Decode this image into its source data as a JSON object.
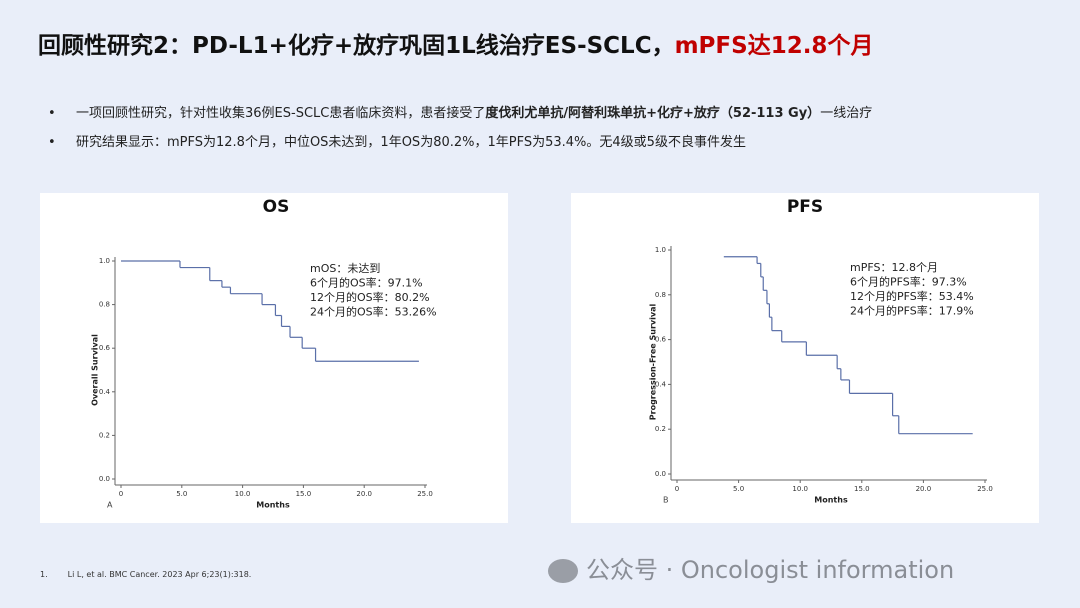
{
  "slide": {
    "title": "回顾性研究2：PD-L1+化疗+放疗巩固1L线治疗ES-SCLC，",
    "title_highlight": "mPFS达12.8个月",
    "bullets": [
      [
        "一项回顾性研究，针对性收集36例ES-SCLC患者临床资料，患者接受了",
        "度伐利尤单抗/阿替利珠单抗+化疗+放疗（52-113 Gy）",
        "一线治疗"
      ],
      [
        "研究结果显示：mPFS为12.8个月，中位OS未达到，1年OS为80.2%，1年PFS为53.4%。无4级或5级不良事件发生"
      ]
    ],
    "footnote_number": "1.",
    "footnote": "Li L, et al. BMC Cancer. 2023 Apr 6;23(1):318.",
    "watermark": "公众号 · Oncologist information"
  },
  "chart_data": [
    {
      "type": "step",
      "title": "OS",
      "panel_label": "A",
      "x_label": "Months",
      "y_label": "Overall Survival",
      "annotations": [
        "mOS：未达到",
        "6个月的OS率：97.1%",
        "12个月的OS率：80.2%",
        "24个月的OS率：53.26%"
      ],
      "x": [
        0,
        4.85,
        7.3,
        8.3,
        9.0,
        11.6,
        12.7,
        13.2,
        13.9,
        14.9,
        16.0
      ],
      "y": [
        1.0,
        0.97,
        0.91,
        0.88,
        0.85,
        0.8,
        0.75,
        0.7,
        0.65,
        0.6,
        0.54
      ],
      "x_end": 24.5,
      "color": "#5a6fa8",
      "xlim": [
        0,
        25
      ],
      "ylim": [
        0,
        1
      ],
      "xticks": [
        0,
        {
          "value": 5,
          "label": "5.0"
        },
        {
          "value": 10,
          "label": "10.0"
        },
        {
          "value": 15,
          "label": "15.0"
        },
        {
          "value": 20,
          "label": "20.0"
        },
        {
          "value": 25,
          "label": "25.0"
        }
      ],
      "yticks": [
        {
          "value": 0,
          "label": "0.0"
        },
        0.2,
        0.4,
        0.6,
        0.8,
        {
          "value": 1,
          "label": "1.0"
        }
      ]
    },
    {
      "type": "step",
      "title": "PFS",
      "panel_label": "B",
      "x_label": "Months",
      "y_label": "Progression-Free Survival",
      "annotations": [
        "mPFS：12.8个月",
        "6个月的PFS率：97.3%",
        "12个月的PFS率：53.4%",
        "24个月的PFS率：17.9%"
      ],
      "x": [
        3.8,
        6.5,
        6.8,
        7.0,
        7.3,
        7.5,
        7.7,
        8.5,
        10.5,
        13.0,
        13.3,
        14.0,
        17.5,
        18.0
      ],
      "y": [
        0.97,
        0.94,
        0.88,
        0.82,
        0.76,
        0.7,
        0.64,
        0.59,
        0.53,
        0.47,
        0.42,
        0.36,
        0.26,
        0.18
      ],
      "x_end": 24.0,
      "color": "#5a6fa8",
      "xlim": [
        0,
        25
      ],
      "ylim": [
        0,
        1
      ],
      "xticks": [
        0,
        {
          "value": 5,
          "label": "5.0"
        },
        {
          "value": 10,
          "label": "10.0"
        },
        {
          "value": 15,
          "label": "15.0"
        },
        {
          "value": 20,
          "label": "20.0"
        },
        {
          "value": 25,
          "label": "25.0"
        }
      ],
      "yticks": [
        {
          "value": 0,
          "label": "0.0"
        },
        0.2,
        0.4,
        0.6,
        0.8,
        {
          "value": 1,
          "label": "1.0"
        }
      ]
    }
  ]
}
